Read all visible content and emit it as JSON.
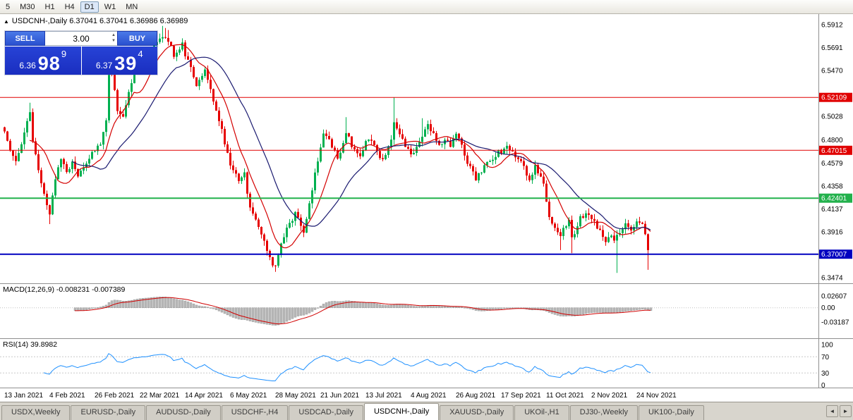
{
  "timeframe_toolbar": {
    "items": [
      "5",
      "M30",
      "H1",
      "H4",
      "D1",
      "W1",
      "MN"
    ],
    "active": "D1"
  },
  "chart": {
    "arrow": "▲",
    "header_line": "USDCNH-,Daily 6.37041 6.37041 6.36986 6.36989"
  },
  "trade_panel": {
    "sell_label": "SELL",
    "buy_label": "BUY",
    "volume": "3.00",
    "spinner_up": "▲",
    "spinner_down": "▼",
    "sell_price_small": "6.36",
    "sell_price_big": "98",
    "sell_price_sup": "9",
    "buy_price_small": "6.37",
    "buy_price_big": "39",
    "buy_price_sup": "4"
  },
  "price_axis": {
    "ticks": [
      {
        "label": "6.5912",
        "value": 6.5912
      },
      {
        "label": "6.5691",
        "value": 6.5691
      },
      {
        "label": "6.5470",
        "value": 6.547
      },
      {
        "label": "6.5028",
        "value": 6.5028
      },
      {
        "label": "6.4800",
        "value": 6.48
      },
      {
        "label": "6.4579",
        "value": 6.4579
      },
      {
        "label": "6.4358",
        "value": 6.4358
      },
      {
        "label": "6.4137",
        "value": 6.4137
      },
      {
        "label": "6.3916",
        "value": 6.3916
      },
      {
        "label": "6.3474",
        "value": 6.3474
      }
    ],
    "badges": [
      {
        "label": "6.52109",
        "value": 6.52109,
        "color": "#e00000"
      },
      {
        "label": "6.47015",
        "value": 6.47015,
        "color": "#e00000"
      },
      {
        "label": "6.42401",
        "value": 6.42401,
        "color": "#22b14c"
      },
      {
        "label": "6.37007",
        "value": 6.37007,
        "color": "#0000c0"
      }
    ]
  },
  "macd_panel": {
    "label": "MACD(12,26,9) -0.008231 -0.007389",
    "ticks": [
      {
        "label": "0.02607",
        "value": 0.02607
      },
      {
        "label": "0.00",
        "value": 0
      },
      {
        "label": "-0.03187",
        "value": -0.03187
      }
    ]
  },
  "rsi_panel": {
    "label": "RSI(14) 39.8982",
    "ticks": [
      {
        "label": "100",
        "value": 100
      },
      {
        "label": "70",
        "value": 70
      },
      {
        "label": "30",
        "value": 30
      },
      {
        "label": "0",
        "value": 0
      }
    ],
    "levels": [
      70,
      30
    ]
  },
  "date_axis": [
    "13 Jan 2021",
    "4 Feb 2021",
    "26 Feb 2021",
    "22 Mar 2021",
    "14 Apr 2021",
    "6 May 2021",
    "28 May 2021",
    "21 Jun 2021",
    "13 Jul 2021",
    "4 Aug 2021",
    "26 Aug 2021",
    "17 Sep 2021",
    "11 Oct 2021",
    "2 Nov 2021",
    "24 Nov 2021"
  ],
  "tab_bar": {
    "tabs": [
      "USDX,Weekly",
      "EURUSD-,Daily",
      "AUDUSD-,Daily",
      "USDCHF-,H4",
      "USDCAD-,Daily",
      "USDCNH-,Daily",
      "XAUUSD-,Daily",
      "UKOil-,H1",
      "DJ30-,Weekly",
      "UK100-,Daily"
    ],
    "active": "USDCNH-,Daily",
    "left_arrow": "◄",
    "right_arrow": "►"
  },
  "chart_data": {
    "type": "candlestick",
    "symbol": "USDCNH-",
    "period": "Daily",
    "visible_range": {
      "price_min": 6.342,
      "price_max": 6.6
    },
    "candle_count": 230,
    "last_candle": {
      "open": 6.37041,
      "high": 6.37041,
      "low": 6.36986,
      "close": 6.36989
    },
    "close_anchors": [
      [
        0,
        6.488
      ],
      [
        2,
        6.472
      ],
      [
        4,
        6.462
      ],
      [
        6,
        6.478
      ],
      [
        8,
        6.498
      ],
      [
        9,
        6.505
      ],
      [
        10,
        6.478
      ],
      [
        12,
        6.452
      ],
      [
        14,
        6.428
      ],
      [
        16,
        6.408
      ],
      [
        18,
        6.444
      ],
      [
        20,
        6.462
      ],
      [
        22,
        6.45
      ],
      [
        24,
        6.458
      ],
      [
        26,
        6.447
      ],
      [
        28,
        6.456
      ],
      [
        30,
        6.463
      ],
      [
        32,
        6.47
      ],
      [
        34,
        6.477
      ],
      [
        36,
        6.5
      ],
      [
        37,
        6.55
      ],
      [
        38,
        6.546
      ],
      [
        40,
        6.51
      ],
      [
        42,
        6.503
      ],
      [
        44,
        6.528
      ],
      [
        46,
        6.544
      ],
      [
        48,
        6.552
      ],
      [
        50,
        6.557
      ],
      [
        52,
        6.567
      ],
      [
        54,
        6.572
      ],
      [
        56,
        6.581
      ],
      [
        58,
        6.577
      ],
      [
        60,
        6.562
      ],
      [
        62,
        6.569
      ],
      [
        63,
        6.573
      ],
      [
        64,
        6.559
      ],
      [
        66,
        6.551
      ],
      [
        68,
        6.531
      ],
      [
        70,
        6.541
      ],
      [
        71,
        6.547
      ],
      [
        73,
        6.527
      ],
      [
        75,
        6.507
      ],
      [
        77,
        6.489
      ],
      [
        78,
        6.477
      ],
      [
        80,
        6.457
      ],
      [
        82,
        6.447
      ],
      [
        83,
        6.441
      ],
      [
        85,
        6.451
      ],
      [
        86,
        6.427
      ],
      [
        88,
        6.407
      ],
      [
        90,
        6.397
      ],
      [
        91,
        6.387
      ],
      [
        93,
        6.375
      ],
      [
        95,
        6.361
      ],
      [
        96,
        6.359
      ],
      [
        98,
        6.381
      ],
      [
        100,
        6.395
      ],
      [
        102,
        6.403
      ],
      [
        103,
        6.409
      ],
      [
        105,
        6.397
      ],
      [
        106,
        6.393
      ],
      [
        108,
        6.419
      ],
      [
        110,
        6.447
      ],
      [
        112,
        6.471
      ],
      [
        113,
        6.485
      ],
      [
        115,
        6.479
      ],
      [
        116,
        6.475
      ],
      [
        118,
        6.461
      ],
      [
        120,
        6.479
      ],
      [
        121,
        6.489
      ],
      [
        123,
        6.475
      ],
      [
        125,
        6.469
      ],
      [
        126,
        6.465
      ],
      [
        128,
        6.479
      ],
      [
        130,
        6.477
      ],
      [
        132,
        6.469
      ],
      [
        133,
        6.461
      ],
      [
        135,
        6.467
      ],
      [
        137,
        6.479
      ],
      [
        138,
        6.499
      ],
      [
        139,
        6.491
      ],
      [
        140,
        6.485
      ],
      [
        142,
        6.475
      ],
      [
        144,
        6.465
      ],
      [
        146,
        6.471
      ],
      [
        148,
        6.485
      ],
      [
        150,
        6.494
      ],
      [
        152,
        6.485
      ],
      [
        154,
        6.475
      ],
      [
        156,
        6.479
      ],
      [
        158,
        6.475
      ],
      [
        160,
        6.485
      ],
      [
        162,
        6.475
      ],
      [
        164,
        6.459
      ],
      [
        166,
        6.449
      ],
      [
        167,
        6.443
      ],
      [
        169,
        6.451
      ],
      [
        171,
        6.457
      ],
      [
        173,
        6.462
      ],
      [
        175,
        6.469
      ],
      [
        176,
        6.465
      ],
      [
        178,
        6.474
      ],
      [
        180,
        6.469
      ],
      [
        182,
        6.461
      ],
      [
        184,
        6.457
      ],
      [
        186,
        6.439
      ],
      [
        188,
        6.454
      ],
      [
        190,
        6.445
      ],
      [
        191,
        6.437
      ],
      [
        192,
        6.421
      ],
      [
        193,
        6.407
      ],
      [
        195,
        6.395
      ],
      [
        197,
        6.389
      ],
      [
        199,
        6.397
      ],
      [
        200,
        6.401
      ],
      [
        201,
        6.385
      ],
      [
        203,
        6.395
      ],
      [
        204,
        6.405
      ],
      [
        206,
        6.41
      ],
      [
        208,
        6.405
      ],
      [
        210,
        6.397
      ],
      [
        212,
        6.389
      ],
      [
        213,
        6.383
      ],
      [
        215,
        6.389
      ],
      [
        216,
        6.385
      ],
      [
        218,
        6.391
      ],
      [
        220,
        6.4
      ],
      [
        222,
        6.395
      ],
      [
        224,
        6.4
      ],
      [
        226,
        6.397
      ],
      [
        227,
        6.387
      ],
      [
        228,
        6.372
      ],
      [
        229,
        6.36989
      ]
    ],
    "wick_extremes": [
      {
        "i": 9,
        "high": 6.516
      },
      {
        "i": 16,
        "low": 6.399
      },
      {
        "i": 37,
        "high": 6.565
      },
      {
        "i": 56,
        "high": 6.59
      },
      {
        "i": 57,
        "high": 6.588
      },
      {
        "i": 58,
        "high": 6.586
      },
      {
        "i": 63,
        "high": 6.578
      },
      {
        "i": 96,
        "low": 6.353
      },
      {
        "i": 97,
        "low": 6.357
      },
      {
        "i": 121,
        "high": 6.502
      },
      {
        "i": 138,
        "high": 6.521
      },
      {
        "i": 148,
        "high": 6.501
      },
      {
        "i": 197,
        "low": 6.374
      },
      {
        "i": 201,
        "low": 6.371
      },
      {
        "i": 217,
        "low": 6.352
      },
      {
        "i": 228,
        "low": 6.355
      }
    ],
    "hlines": [
      {
        "price": 6.52109,
        "color": "#e00000",
        "width": 1
      },
      {
        "price": 6.47015,
        "color": "#e00000",
        "width": 1
      },
      {
        "price": 6.42401,
        "color": "#22b14c",
        "width": 2
      },
      {
        "price": 6.37007,
        "color": "#0000c0",
        "width": 2
      }
    ],
    "overlays": [
      {
        "name": "ma-fast",
        "type": "sma",
        "period": 10,
        "color": "#d40000"
      },
      {
        "name": "ma-slow",
        "type": "sma",
        "period": 25,
        "color": "#1a1a70"
      }
    ],
    "indicators": [
      {
        "name": "MACD",
        "params": [
          12,
          26,
          9
        ],
        "last": [
          -0.008231,
          -0.007389
        ]
      },
      {
        "name": "RSI",
        "params": [
          14
        ],
        "last": 39.8982
      }
    ],
    "colors": {
      "up": "#00b050",
      "down": "#e60000",
      "macd_hist": "#b8b8b8",
      "macd_signal": "#d00000",
      "rsi_line": "#1e90ff"
    }
  }
}
